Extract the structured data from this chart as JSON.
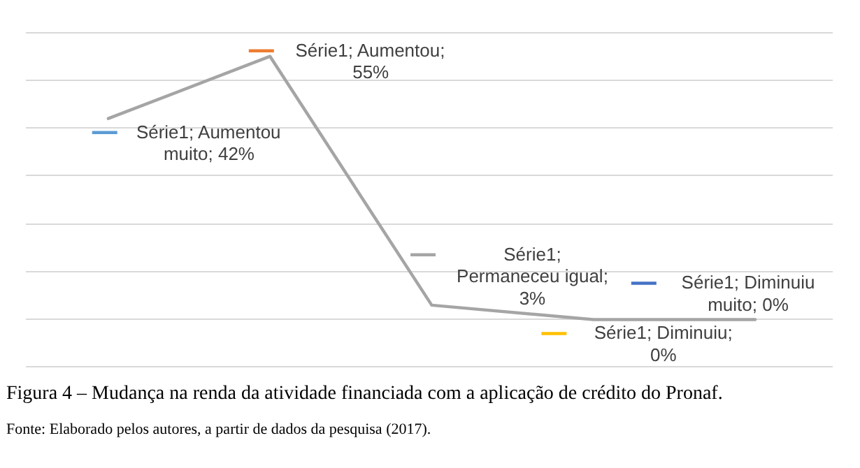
{
  "chart_data": {
    "type": "line",
    "title": "Figura 4 – Mudança na renda da atividade financiada com a aplicação de crédito do Pronaf.",
    "annotations": [
      "Fonte: Elaborado pelos autores, a partir de dados da pesquisa (2017)."
    ],
    "categories": [
      null,
      null,
      null,
      null,
      null
    ],
    "values": [
      42,
      55,
      3,
      0,
      0
    ],
    "color": "#a5a5a5",
    "colors": [
      "#5b9bd5",
      "#ed7d31",
      "#a5a5a5",
      "#ffc000",
      "#4472c4"
    ],
    "value_labels": [
      "Série1; Aumentou muito; 42%",
      "Série1; Aumentou; 55%",
      "Série1; Permaneceu igual; 3%",
      "Série1; Diminuiu; 0%",
      "Série1; Diminuiu muito; 0%"
    ],
    "tick_labels": false,
    "grid": "y",
    "marker": "none",
    "line_style": "solid"
  }
}
